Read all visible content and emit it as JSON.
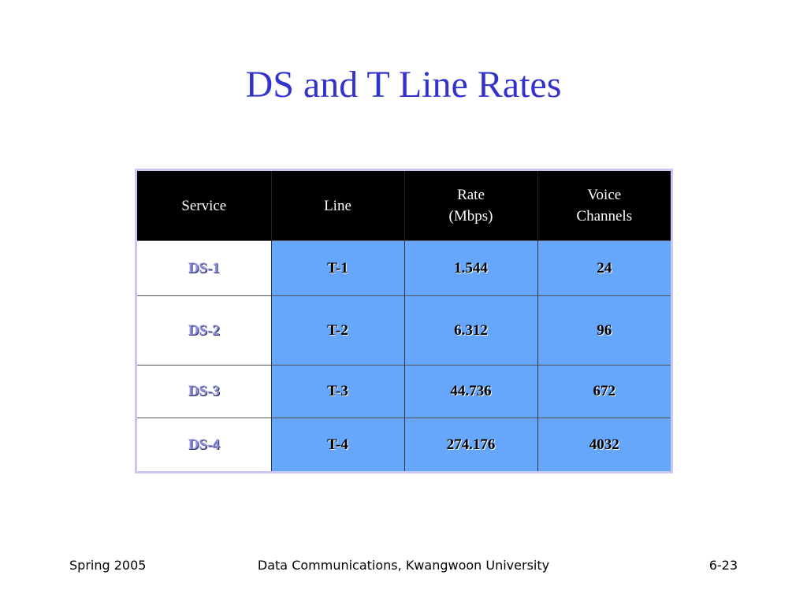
{
  "slide": {
    "title": "DS and T Line Rates"
  },
  "table": {
    "headers": {
      "service": "Service",
      "line": "Line",
      "rate_line1": "Rate",
      "rate_line2": "(Mbps)",
      "voice_line1": "Voice",
      "voice_line2": "Channels"
    },
    "rows": [
      {
        "service": "DS-1",
        "line": "T-1",
        "rate": "1.544",
        "voice": "24"
      },
      {
        "service": "DS-2",
        "line": "T-2",
        "rate": "6.312",
        "voice": "96"
      },
      {
        "service": "DS-3",
        "line": "T-3",
        "rate": "44.736",
        "voice": "672"
      },
      {
        "service": "DS-4",
        "line": "T-4",
        "rate": "274.176",
        "voice": "4032"
      }
    ],
    "colors": {
      "header_bg": "#000000",
      "data_bg": "#66a6fb",
      "service_text": "#8f8fd8",
      "frame": "#c8c8f4"
    }
  },
  "footer": {
    "left": "Spring 2005",
    "center": "Data Communications, Kwangwoon University",
    "right": "6-23"
  },
  "theme": {
    "title_color": "#3333cc"
  }
}
